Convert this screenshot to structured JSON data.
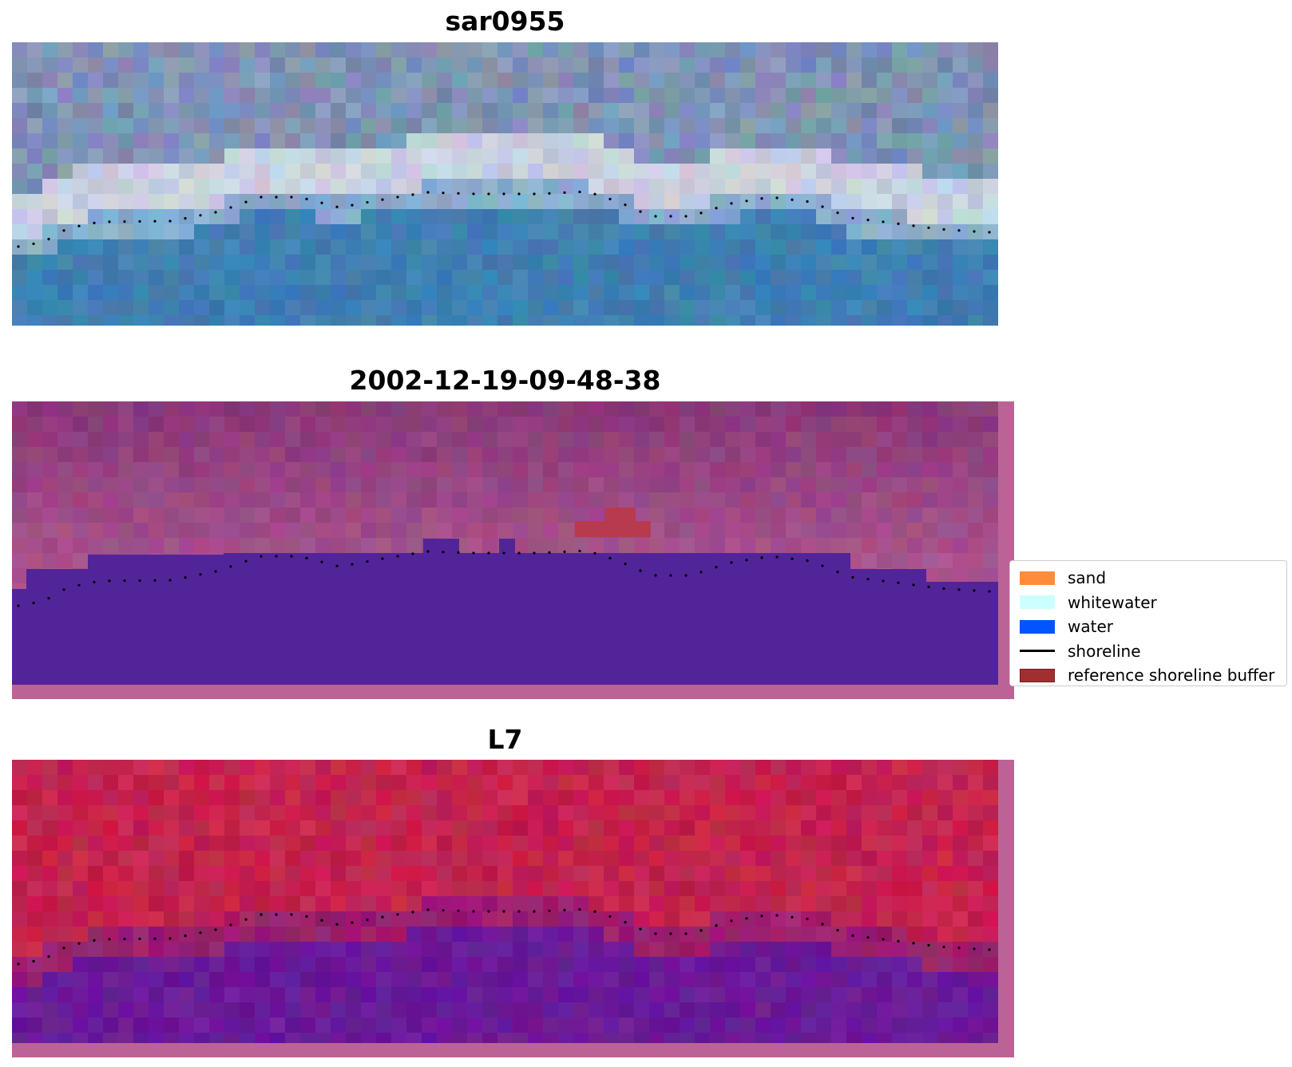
{
  "panels": [
    {
      "title": "sar0955",
      "style": "rgb"
    },
    {
      "title": "2002-12-19-09-48-38",
      "style": "classified"
    },
    {
      "title": "L7",
      "style": "index"
    }
  ],
  "legend": {
    "items": [
      {
        "label": "sand",
        "color": "#ff8c3a",
        "kind": "swatch"
      },
      {
        "label": "whitewater",
        "color": "#ccffff",
        "kind": "swatch"
      },
      {
        "label": "water",
        "color": "#0055ff",
        "kind": "swatch"
      },
      {
        "label": "shoreline",
        "color": "#000000",
        "kind": "line"
      },
      {
        "label": "reference shoreline buffer",
        "color": "#a03030",
        "kind": "swatch",
        "edge": "#7a1a1a"
      }
    ]
  },
  "colors": {
    "rgb_water": "#3f7fb2",
    "rgb_surf": "#e2e4ee",
    "rgb_land": "#7f93b5",
    "classified_bg": "#8a3a79",
    "classified_water": "#52249a",
    "classified_buffer": "#b83a4e",
    "classified_frame": "#bb6396",
    "index_top": "#c4234e",
    "index_water": "#6a1a98",
    "index_frame": "#bb6396"
  }
}
